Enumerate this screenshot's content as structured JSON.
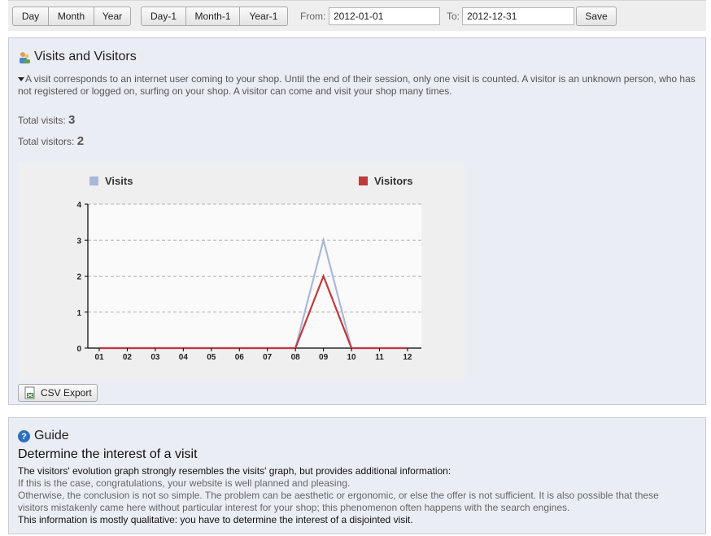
{
  "toolbar": {
    "day": "Day",
    "month": "Month",
    "year": "Year",
    "day_minus": "Day-1",
    "month_minus": "Month-1",
    "year_minus": "Year-1",
    "from_label": "From:",
    "from_value": "2012-01-01",
    "to_label": "To:",
    "to_value": "2012-12-31",
    "save": "Save"
  },
  "stats": {
    "title": "Visits and Visitors",
    "description": "A visit corresponds to an internet user coming to your shop. Until the end of their session, only one visit is counted. A visitor is an unknown person, who has not registered or logged on, surfing on your shop. A visitor can come and visit your shop many times.",
    "total_visits_label": "Total visits:",
    "total_visits": "3",
    "total_visitors_label": "Total visitors:",
    "total_visitors": "2",
    "csv_label": "CSV Export",
    "icons": {
      "title": "users-icon",
      "toggle": "triangle-down-icon",
      "csv": "csv-file-icon"
    }
  },
  "chart_data": {
    "type": "line",
    "categories": [
      "01",
      "02",
      "03",
      "04",
      "05",
      "06",
      "07",
      "08",
      "09",
      "10",
      "11",
      "12"
    ],
    "series": [
      {
        "name": "Visits",
        "color": "#a8b8d8",
        "values": [
          0,
          0,
          0,
          0,
          0,
          0,
          0,
          0,
          3,
          0,
          0,
          0
        ]
      },
      {
        "name": "Visitors",
        "color": "#c0393b",
        "values": [
          0,
          0,
          0,
          0,
          0,
          0,
          0,
          0,
          2,
          0,
          0,
          0
        ]
      }
    ],
    "yticks": [
      "0",
      "1",
      "2",
      "3",
      "4"
    ],
    "ylim": [
      0,
      4
    ],
    "grid": "dashed horizontal",
    "legend": "top"
  },
  "guide": {
    "title": "Guide",
    "heading": "Determine the interest of a visit",
    "p1": "The visitors' evolution graph strongly resembles the visits' graph, but provides additional information:",
    "p2": "If this is the case, congratulations, your website is well planned and pleasing.",
    "p3a": "Otherwise, the conclusion is not so simple. The problem can be aesthetic or ergonomic, or else the offer is not sufficient. It is also possible that these",
    "p3b": "visitors mistakenly came here without particular interest for your shop; this phenomenon often happens with the search engines.",
    "p4": "This information is mostly qualitative: you have to determine the interest of a disjointed visit.",
    "icon": "help-icon"
  }
}
